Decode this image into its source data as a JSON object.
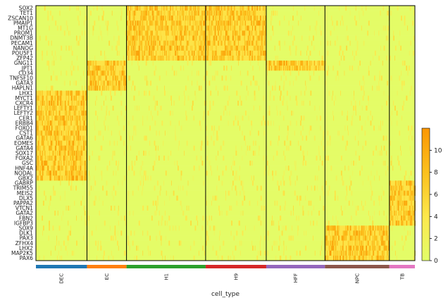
{
  "chart_data": {
    "type": "heatmap",
    "title": "",
    "xlabel": "cell_type",
    "ylabel": "",
    "genes": [
      "SOX2",
      "TET1",
      "ZSCAN10",
      "PMAIP1",
      "MT1G",
      "PROM1",
      "DNMT3B",
      "PECAM1",
      "NANOG",
      "POU5F1",
      "ZFP42",
      "GNG11",
      "JPT1",
      "CD34",
      "TNFSF10",
      "GATA3",
      "HAPLN1",
      "LHX1",
      "MYCT1",
      "CXCR4",
      "LEFTY1",
      "LEFTY2",
      "CER1",
      "ERBB4",
      "FOXO1",
      "CST1",
      "GATA6",
      "EOMES",
      "GATA4",
      "SOX17",
      "FOXA2",
      "GSC",
      "HNF4A",
      "NODAL",
      "GBX2",
      "GABRP",
      "TRIM55",
      "MEIS2",
      "DLX5",
      "PAPPA2",
      "VTCN1",
      "GATA2",
      "FBN2",
      "IGFBP3",
      "SOX9",
      "DLK1",
      "PAX3",
      "ZFHX4",
      "LHX2",
      "MAP2K5",
      "PAX6"
    ],
    "groups": [
      {
        "name": "DEC",
        "cells": 80,
        "color": "#1f77b4"
      },
      {
        "name": "EC",
        "cells": 62,
        "color": "#ff7f0e"
      },
      {
        "name": "H1",
        "cells": 124,
        "color": "#2ca02c"
      },
      {
        "name": "H9",
        "cells": 95,
        "color": "#d62728"
      },
      {
        "name": "HFF",
        "cells": 92,
        "color": "#9467bd"
      },
      {
        "name": "NPC",
        "cells": 101,
        "color": "#8c564b"
      },
      {
        "name": "TB",
        "cells": 40,
        "color": "#e377c2"
      }
    ],
    "marker_rows": {
      "DEC": [
        17,
        35
      ],
      "EC": [
        11,
        17
      ],
      "H1": [
        0,
        11
      ],
      "H9": [
        0,
        11
      ],
      "HFF": [
        11,
        13
      ],
      "NPC": [
        44,
        51
      ],
      "TB": [
        35,
        44
      ]
    },
    "colorbar": {
      "min": 0,
      "max": 12,
      "ticks": [
        0,
        2,
        4,
        6,
        8,
        10
      ]
    },
    "colorscale": [
      "#e2fe6a",
      "#fde84c",
      "#fcc11e",
      "#fb9703"
    ]
  }
}
